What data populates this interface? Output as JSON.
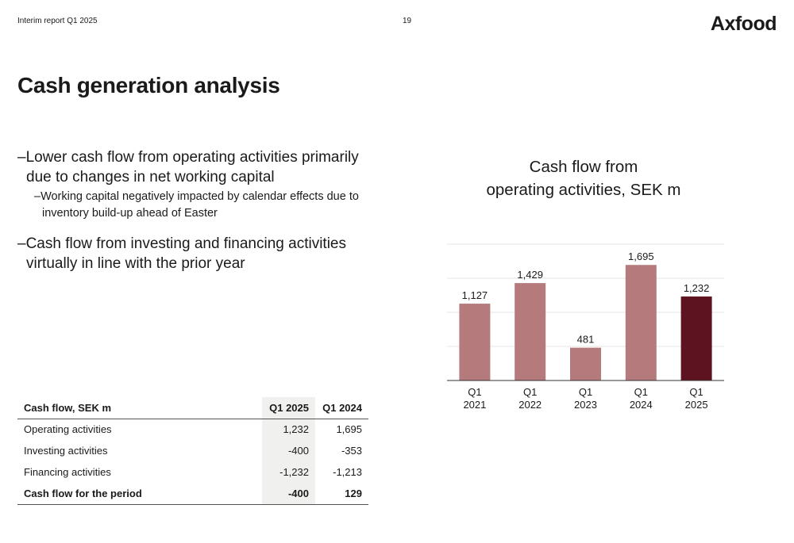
{
  "header": {
    "report": "Interim report Q1 2025",
    "page": "19",
    "logo": "Axfood"
  },
  "title": "Cash generation analysis",
  "bullets": {
    "b1": "–Lower cash flow from operating activities primarily due to changes in net working capital",
    "b1_sub": "–Working capital negatively impacted by calendar effects due to inventory build-up ahead of Easter",
    "b2": "–Cash flow from investing and financing activities virtually in line with the prior year"
  },
  "chart_title": {
    "line1": "Cash flow from",
    "line2": "operating activities, SEK m"
  },
  "chart_data": {
    "type": "bar",
    "title": "Cash flow from operating activities, SEK m",
    "categories": [
      [
        "Q1",
        "2021"
      ],
      [
        "Q1",
        "2022"
      ],
      [
        "Q1",
        "2023"
      ],
      [
        "Q1",
        "2024"
      ],
      [
        "Q1",
        "2025"
      ]
    ],
    "values": [
      1127,
      1429,
      481,
      1695,
      1232
    ],
    "value_labels": [
      "1,127",
      "1,429",
      "481",
      "1,695",
      "1,232"
    ],
    "bar_colors": [
      "#b47a7c",
      "#b47a7c",
      "#b47a7c",
      "#b47a7c",
      "#5e1420"
    ],
    "ylim": [
      0,
      2000
    ],
    "grid": true,
    "gridline_values": [
      500,
      1000,
      1500,
      2000
    ],
    "xlabel": "",
    "ylabel": ""
  },
  "table": {
    "header": [
      "Cash flow, SEK m",
      "Q1 2025",
      "Q1 2024"
    ],
    "rows": [
      [
        "Operating activities",
        "1,232",
        "1,695"
      ],
      [
        "Investing activities",
        "-400",
        "-353"
      ],
      [
        "Financing activities",
        "-1,232",
        "-1,213"
      ]
    ],
    "total": [
      "Cash flow for the period",
      "-400",
      "129"
    ]
  }
}
